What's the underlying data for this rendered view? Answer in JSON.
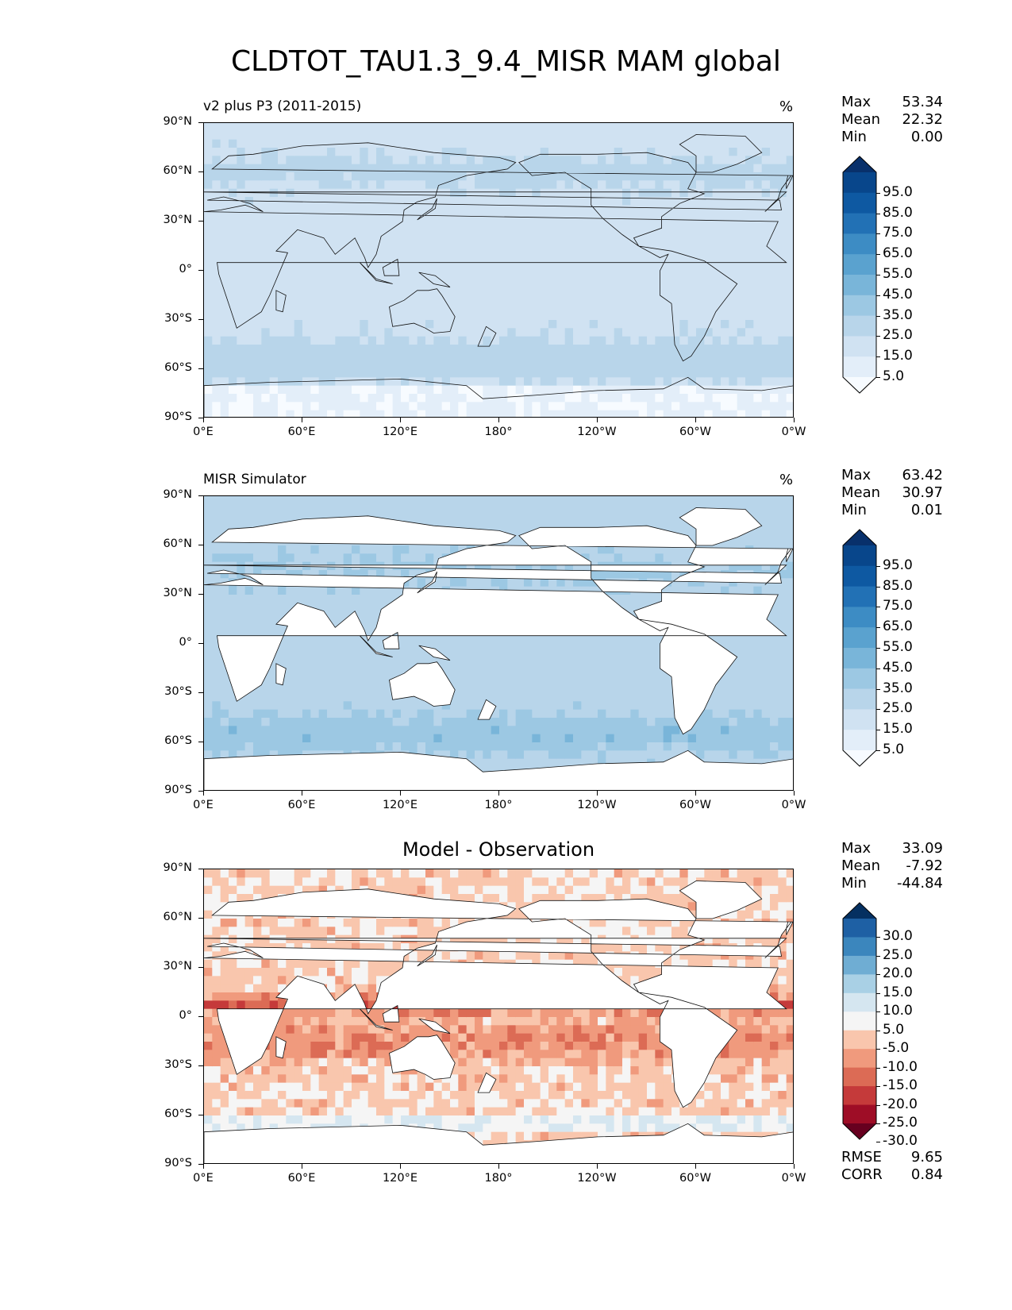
{
  "figure_title": "CLDTOT_TAU1.3_9.4_MISR MAM global",
  "axes": {
    "y_ticks": [
      "90°N",
      "60°N",
      "30°N",
      "0°",
      "30°S",
      "60°S",
      "90°S"
    ],
    "x_ticks": [
      "0°E",
      "60°E",
      "120°E",
      "180°",
      "120°W",
      "60°W",
      "0°W"
    ]
  },
  "panels": [
    {
      "title": "v2 plus P3 (2011-2015)",
      "units": "%",
      "stats": [
        {
          "label": "Max",
          "value": "53.34"
        },
        {
          "label": "Mean",
          "value": "22.32"
        },
        {
          "label": "Min",
          "value": "0.00"
        }
      ],
      "colorbar": {
        "colormap": "Blues",
        "labels": [
          "95.0",
          "85.0",
          "75.0",
          "65.0",
          "55.0",
          "45.0",
          "35.0",
          "25.0",
          "15.0",
          "5.0"
        ],
        "colors": [
          "#f7fbff",
          "#e3eef9",
          "#d0e2f2",
          "#b8d5ea",
          "#9cc8e3",
          "#79b5d9",
          "#5aa2cf",
          "#3d8cc4",
          "#2271b5",
          "#0e59a2",
          "#08468b",
          "#08306b"
        ]
      }
    },
    {
      "title": "MISR Simulator",
      "units": "%",
      "stats": [
        {
          "label": "Max",
          "value": "63.42"
        },
        {
          "label": "Mean",
          "value": "30.97"
        },
        {
          "label": "Min",
          "value": "0.01"
        }
      ],
      "colorbar": {
        "colormap": "Blues",
        "labels": [
          "95.0",
          "85.0",
          "75.0",
          "65.0",
          "55.0",
          "45.0",
          "35.0",
          "25.0",
          "15.0",
          "5.0"
        ],
        "colors": [
          "#f7fbff",
          "#e3eef9",
          "#d0e2f2",
          "#b8d5ea",
          "#9cc8e3",
          "#79b5d9",
          "#5aa2cf",
          "#3d8cc4",
          "#2271b5",
          "#0e59a2",
          "#08468b",
          "#08306b"
        ]
      }
    },
    {
      "title": "Model - Observation",
      "units": "",
      "stats": [
        {
          "label": "Max",
          "value": "33.09"
        },
        {
          "label": "Mean",
          "value": "-7.92"
        },
        {
          "label": "Min",
          "value": "-44.84"
        }
      ],
      "colorbar": {
        "colormap": "RdBu",
        "labels": [
          "30.0",
          "25.0",
          "20.0",
          "15.0",
          "10.0",
          "5.0",
          "-5.0",
          "-10.0",
          "-15.0",
          "-20.0",
          "-25.0",
          "-30.0"
        ],
        "colors": [
          "#67001f",
          "#9e0d26",
          "#c53a3a",
          "#dc6b55",
          "#f09a7d",
          "#f9c6ad",
          "#f5f5f5",
          "#d5e6f0",
          "#a9d0e5",
          "#6fadd3",
          "#3b86bd",
          "#1e60a4",
          "#053061"
        ]
      },
      "skill": [
        {
          "label": "RMSE",
          "value": "9.65"
        },
        {
          "label": "CORR",
          "value": "0.84"
        }
      ]
    }
  ]
}
